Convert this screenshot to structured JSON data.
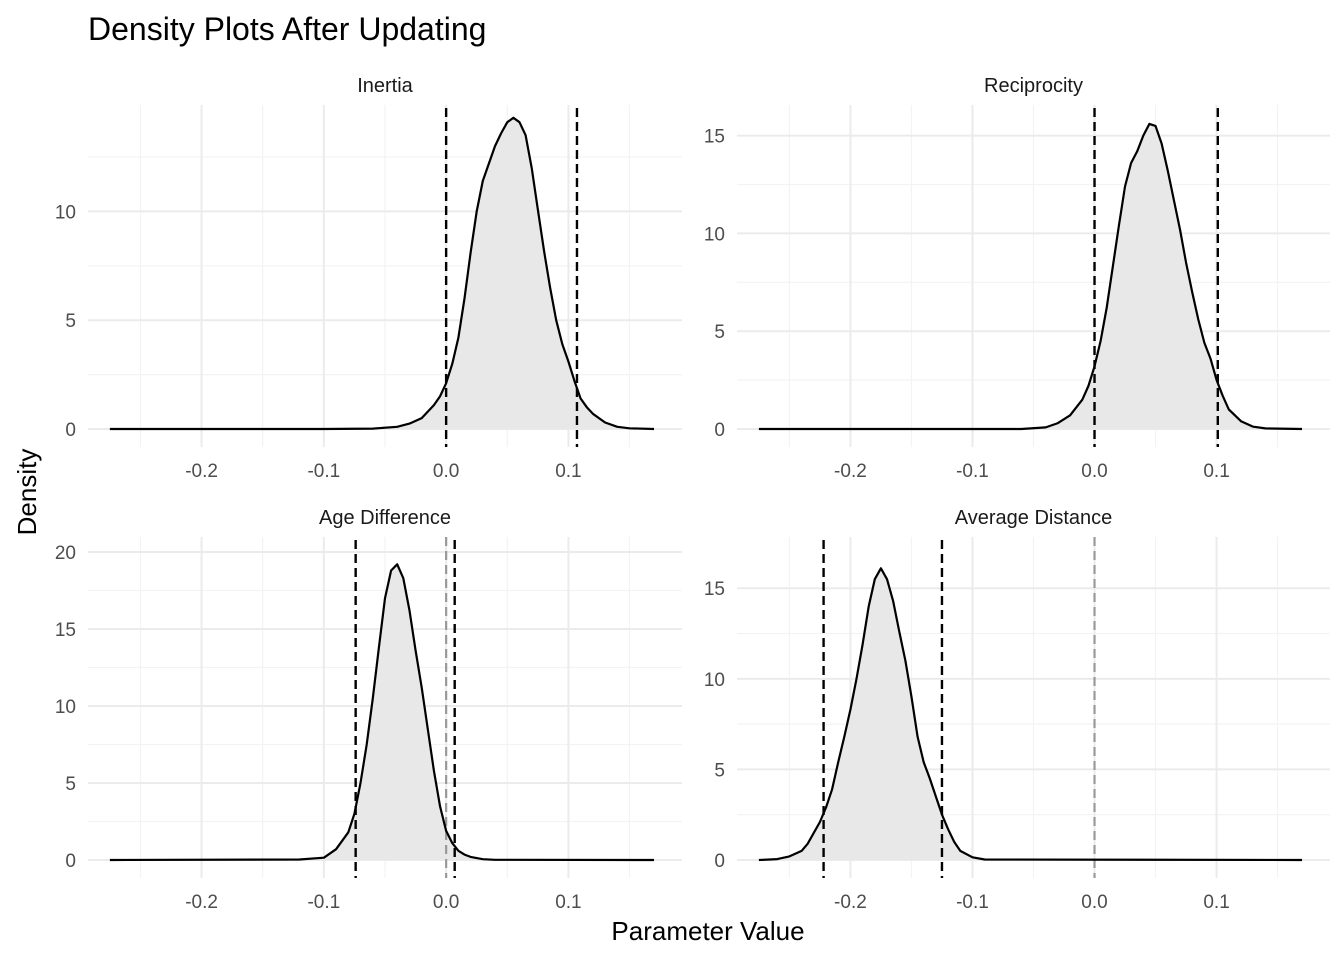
{
  "title": "Density Plots After Updating",
  "x_axis_label": "Parameter Value",
  "y_axis_label": "Density",
  "colors": {
    "background": "#ffffff",
    "grid_major": "#ebebeb",
    "grid_minor": "#f3f3f3",
    "fill": "#e8e8e8",
    "line": "#000000",
    "zero_line": "#999999"
  },
  "chart_data": [
    {
      "type": "area",
      "panel": "Inertia",
      "xlim": [
        -0.27,
        0.17
      ],
      "ylim": [
        0,
        14.2
      ],
      "x_ticks": [
        -0.2,
        -0.1,
        0.0,
        0.1
      ],
      "x_tick_labels": [
        "-0.2",
        "-0.1",
        "0.0",
        "0.1"
      ],
      "y_ticks": [
        0,
        5,
        10
      ],
      "y_tick_labels": [
        "0",
        "5",
        "10"
      ],
      "x": [
        -0.275,
        -0.1,
        -0.06,
        -0.04,
        -0.03,
        -0.02,
        -0.01,
        -0.005,
        0.0,
        0.005,
        0.01,
        0.015,
        0.02,
        0.025,
        0.03,
        0.035,
        0.04,
        0.045,
        0.05,
        0.055,
        0.06,
        0.065,
        0.07,
        0.075,
        0.08,
        0.085,
        0.09,
        0.095,
        0.1,
        0.105,
        0.11,
        0.115,
        0.12,
        0.13,
        0.14,
        0.15,
        0.17
      ],
      "y": [
        0,
        0,
        0.02,
        0.1,
        0.25,
        0.5,
        1.1,
        1.5,
        2.1,
        3.0,
        4.2,
        6.0,
        8.1,
        10.0,
        11.4,
        12.2,
        13.0,
        13.6,
        14.1,
        14.3,
        14.1,
        13.5,
        12.0,
        10.1,
        8.2,
        6.5,
        5.0,
        3.9,
        3.1,
        2.2,
        1.4,
        1.0,
        0.7,
        0.3,
        0.1,
        0.03,
        0
      ],
      "intervals": [
        0.0,
        0.107
      ],
      "show_zero_line": false
    },
    {
      "type": "area",
      "panel": "Reciprocity",
      "xlim": [
        -0.27,
        0.17
      ],
      "ylim": [
        0,
        15.8
      ],
      "x_ticks": [
        -0.2,
        -0.1,
        0.0,
        0.1
      ],
      "x_tick_labels": [
        "-0.2",
        "-0.1",
        "0.0",
        "0.1"
      ],
      "y_ticks": [
        0,
        5,
        10,
        15
      ],
      "y_tick_labels": [
        "0",
        "5",
        "10",
        "15"
      ],
      "x": [
        -0.275,
        -0.06,
        -0.04,
        -0.03,
        -0.02,
        -0.01,
        -0.005,
        0.0,
        0.005,
        0.01,
        0.015,
        0.02,
        0.025,
        0.03,
        0.035,
        0.04,
        0.045,
        0.05,
        0.055,
        0.06,
        0.065,
        0.07,
        0.075,
        0.08,
        0.085,
        0.09,
        0.095,
        0.1,
        0.105,
        0.11,
        0.115,
        0.12,
        0.13,
        0.14,
        0.17
      ],
      "y": [
        0,
        0,
        0.08,
        0.3,
        0.7,
        1.5,
        2.2,
        3.2,
        4.5,
        6.2,
        8.3,
        10.4,
        12.4,
        13.6,
        14.2,
        15.0,
        15.6,
        15.5,
        14.6,
        13.2,
        11.7,
        10.2,
        8.5,
        7.0,
        5.6,
        4.4,
        3.6,
        2.5,
        1.7,
        1.0,
        0.7,
        0.4,
        0.12,
        0.03,
        0
      ],
      "intervals": [
        0.0,
        0.101
      ],
      "show_zero_line": false
    },
    {
      "type": "area",
      "panel": "Age Difference",
      "xlim": [
        -0.27,
        0.17
      ],
      "ylim": [
        0,
        20
      ],
      "x_ticks": [
        -0.2,
        -0.1,
        0.0,
        0.1
      ],
      "x_tick_labels": [
        "-0.2",
        "-0.1",
        "0.0",
        "0.1"
      ],
      "y_ticks": [
        0,
        5,
        10,
        15,
        20
      ],
      "y_tick_labels": [
        "0",
        "5",
        "10",
        "15",
        "20"
      ],
      "x": [
        -0.275,
        -0.12,
        -0.1,
        -0.09,
        -0.08,
        -0.075,
        -0.07,
        -0.065,
        -0.06,
        -0.055,
        -0.05,
        -0.045,
        -0.04,
        -0.035,
        -0.03,
        -0.025,
        -0.02,
        -0.015,
        -0.01,
        -0.005,
        0.0,
        0.005,
        0.01,
        0.015,
        0.02,
        0.03,
        0.04,
        0.17
      ],
      "y": [
        0,
        0.03,
        0.15,
        0.7,
        1.8,
        3.0,
        5.0,
        7.5,
        10.5,
        13.8,
        17.0,
        18.8,
        19.2,
        18.3,
        16.2,
        13.6,
        11.2,
        8.5,
        5.8,
        3.5,
        1.9,
        1.1,
        0.6,
        0.35,
        0.2,
        0.05,
        0.01,
        0
      ],
      "intervals": [
        -0.074,
        0.007
      ],
      "show_zero_line": true
    },
    {
      "type": "area",
      "panel": "Average Distance",
      "xlim": [
        -0.27,
        0.17
      ],
      "ylim": [
        0,
        17
      ],
      "x_ticks": [
        -0.2,
        -0.1,
        0.0,
        0.1
      ],
      "x_tick_labels": [
        "-0.2",
        "-0.1",
        "0.0",
        "0.1"
      ],
      "y_ticks": [
        0,
        5,
        10,
        15
      ],
      "y_tick_labels": [
        "0",
        "5",
        "10",
        "15"
      ],
      "x": [
        -0.275,
        -0.26,
        -0.25,
        -0.24,
        -0.235,
        -0.23,
        -0.225,
        -0.22,
        -0.215,
        -0.21,
        -0.205,
        -0.2,
        -0.195,
        -0.19,
        -0.185,
        -0.18,
        -0.175,
        -0.17,
        -0.165,
        -0.16,
        -0.155,
        -0.15,
        -0.145,
        -0.14,
        -0.135,
        -0.13,
        -0.125,
        -0.12,
        -0.115,
        -0.11,
        -0.1,
        -0.09,
        0.17
      ],
      "y": [
        0,
        0.05,
        0.2,
        0.5,
        0.9,
        1.5,
        2.1,
        2.9,
        3.9,
        5.4,
        6.8,
        8.3,
        10.0,
        11.9,
        14.0,
        15.5,
        16.1,
        15.5,
        14.3,
        12.6,
        11.0,
        9.0,
        6.8,
        5.4,
        4.5,
        3.5,
        2.5,
        1.7,
        1.0,
        0.5,
        0.15,
        0.03,
        0
      ],
      "intervals": [
        -0.222,
        -0.125
      ],
      "show_zero_line": true
    }
  ]
}
